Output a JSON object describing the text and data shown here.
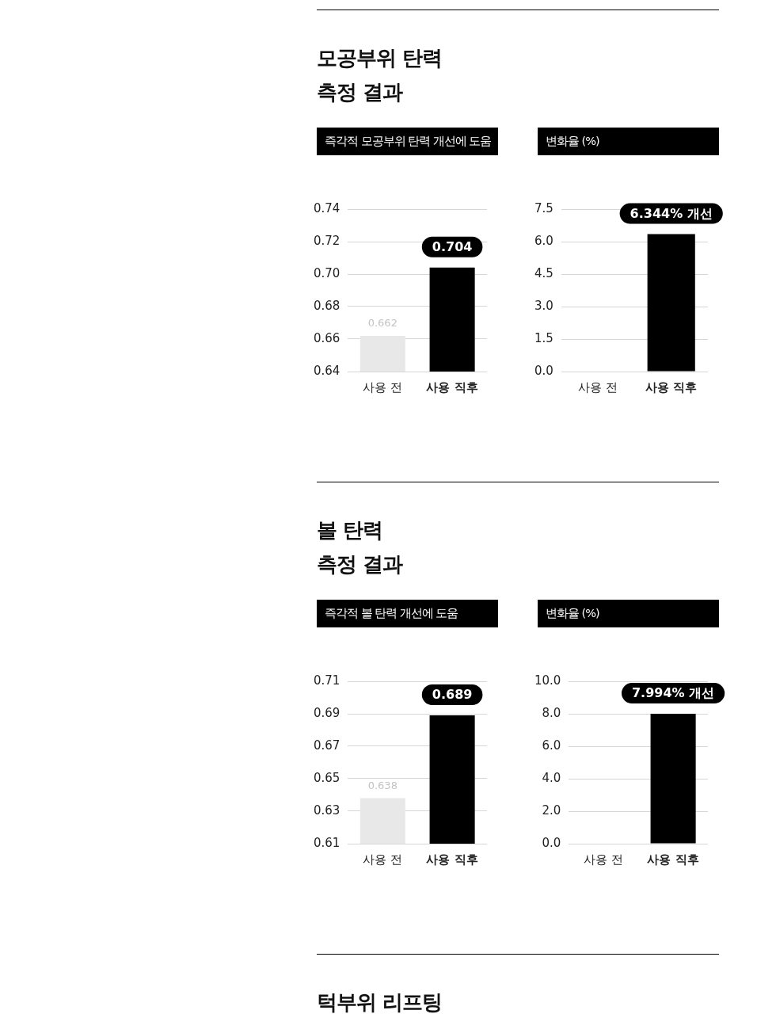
{
  "chart_data": [
    {
      "type": "other",
      "title": "모공부위 탄력\n측정 결과"
    },
    {
      "type": "bar",
      "title": "즉각적 모공부위 탄력 개선에 도움",
      "categories": [
        "사용 전",
        "사용 직후"
      ],
      "values": [
        0.662,
        0.704
      ],
      "colors": [
        "#e8e8e8",
        "#000000"
      ],
      "ylim": [
        0.64,
        0.74
      ],
      "yticks": [
        0.64,
        0.66,
        0.68,
        {
          "value": 0.7,
          "label": "0.70"
        },
        0.72,
        0.74
      ],
      "grid": "y",
      "data_labels": true
    },
    {
      "type": "bar",
      "title": "변화율 (%)",
      "categories": [
        "사용 전",
        "사용 직후"
      ],
      "values": [
        0,
        6.344
      ],
      "colors": [
        "#e8e8e8",
        "#000000"
      ],
      "ylim": [
        0,
        7.5
      ],
      "yticks": [
        {
          "value": 0,
          "label": "0.0"
        },
        1.5,
        {
          "value": 3,
          "label": "3.0"
        },
        4.5,
        {
          "value": 6,
          "label": "6.0"
        },
        7.5
      ],
      "grid": "y",
      "value_labels": [
        null,
        "6.344% 개선"
      ]
    },
    {
      "type": "other",
      "title": "볼 탄력\n측정 결과"
    },
    {
      "type": "bar",
      "title": "즉각적 볼 탄력 개선에 도움",
      "categories": [
        "사용 전",
        "사용 직후"
      ],
      "values": [
        0.638,
        0.689
      ],
      "colors": [
        "#e8e8e8",
        "#000000"
      ],
      "ylim": [
        0.61,
        0.71
      ],
      "yticks": [
        0.61,
        0.63,
        0.65,
        0.67,
        0.69,
        0.71
      ],
      "grid": "y",
      "data_labels": true
    },
    {
      "type": "bar",
      "title": "변화율 (%)",
      "categories": [
        "사용 전",
        "사용 직후"
      ],
      "values": [
        0,
        7.994
      ],
      "colors": [
        "#e8e8e8",
        "#000000"
      ],
      "ylim": [
        0,
        10
      ],
      "yticks": [
        {
          "value": 0,
          "label": "0.0"
        },
        {
          "value": 2,
          "label": "2.0"
        },
        {
          "value": 4,
          "label": "4.0"
        },
        {
          "value": 6,
          "label": "6.0"
        },
        {
          "value": 8,
          "label": "8.0"
        },
        {
          "value": 10,
          "label": "10.0"
        }
      ],
      "grid": "y",
      "value_labels": [
        null,
        "7.994% 개선"
      ]
    },
    {
      "type": "other",
      "title": "턱부위 리프팅"
    }
  ]
}
